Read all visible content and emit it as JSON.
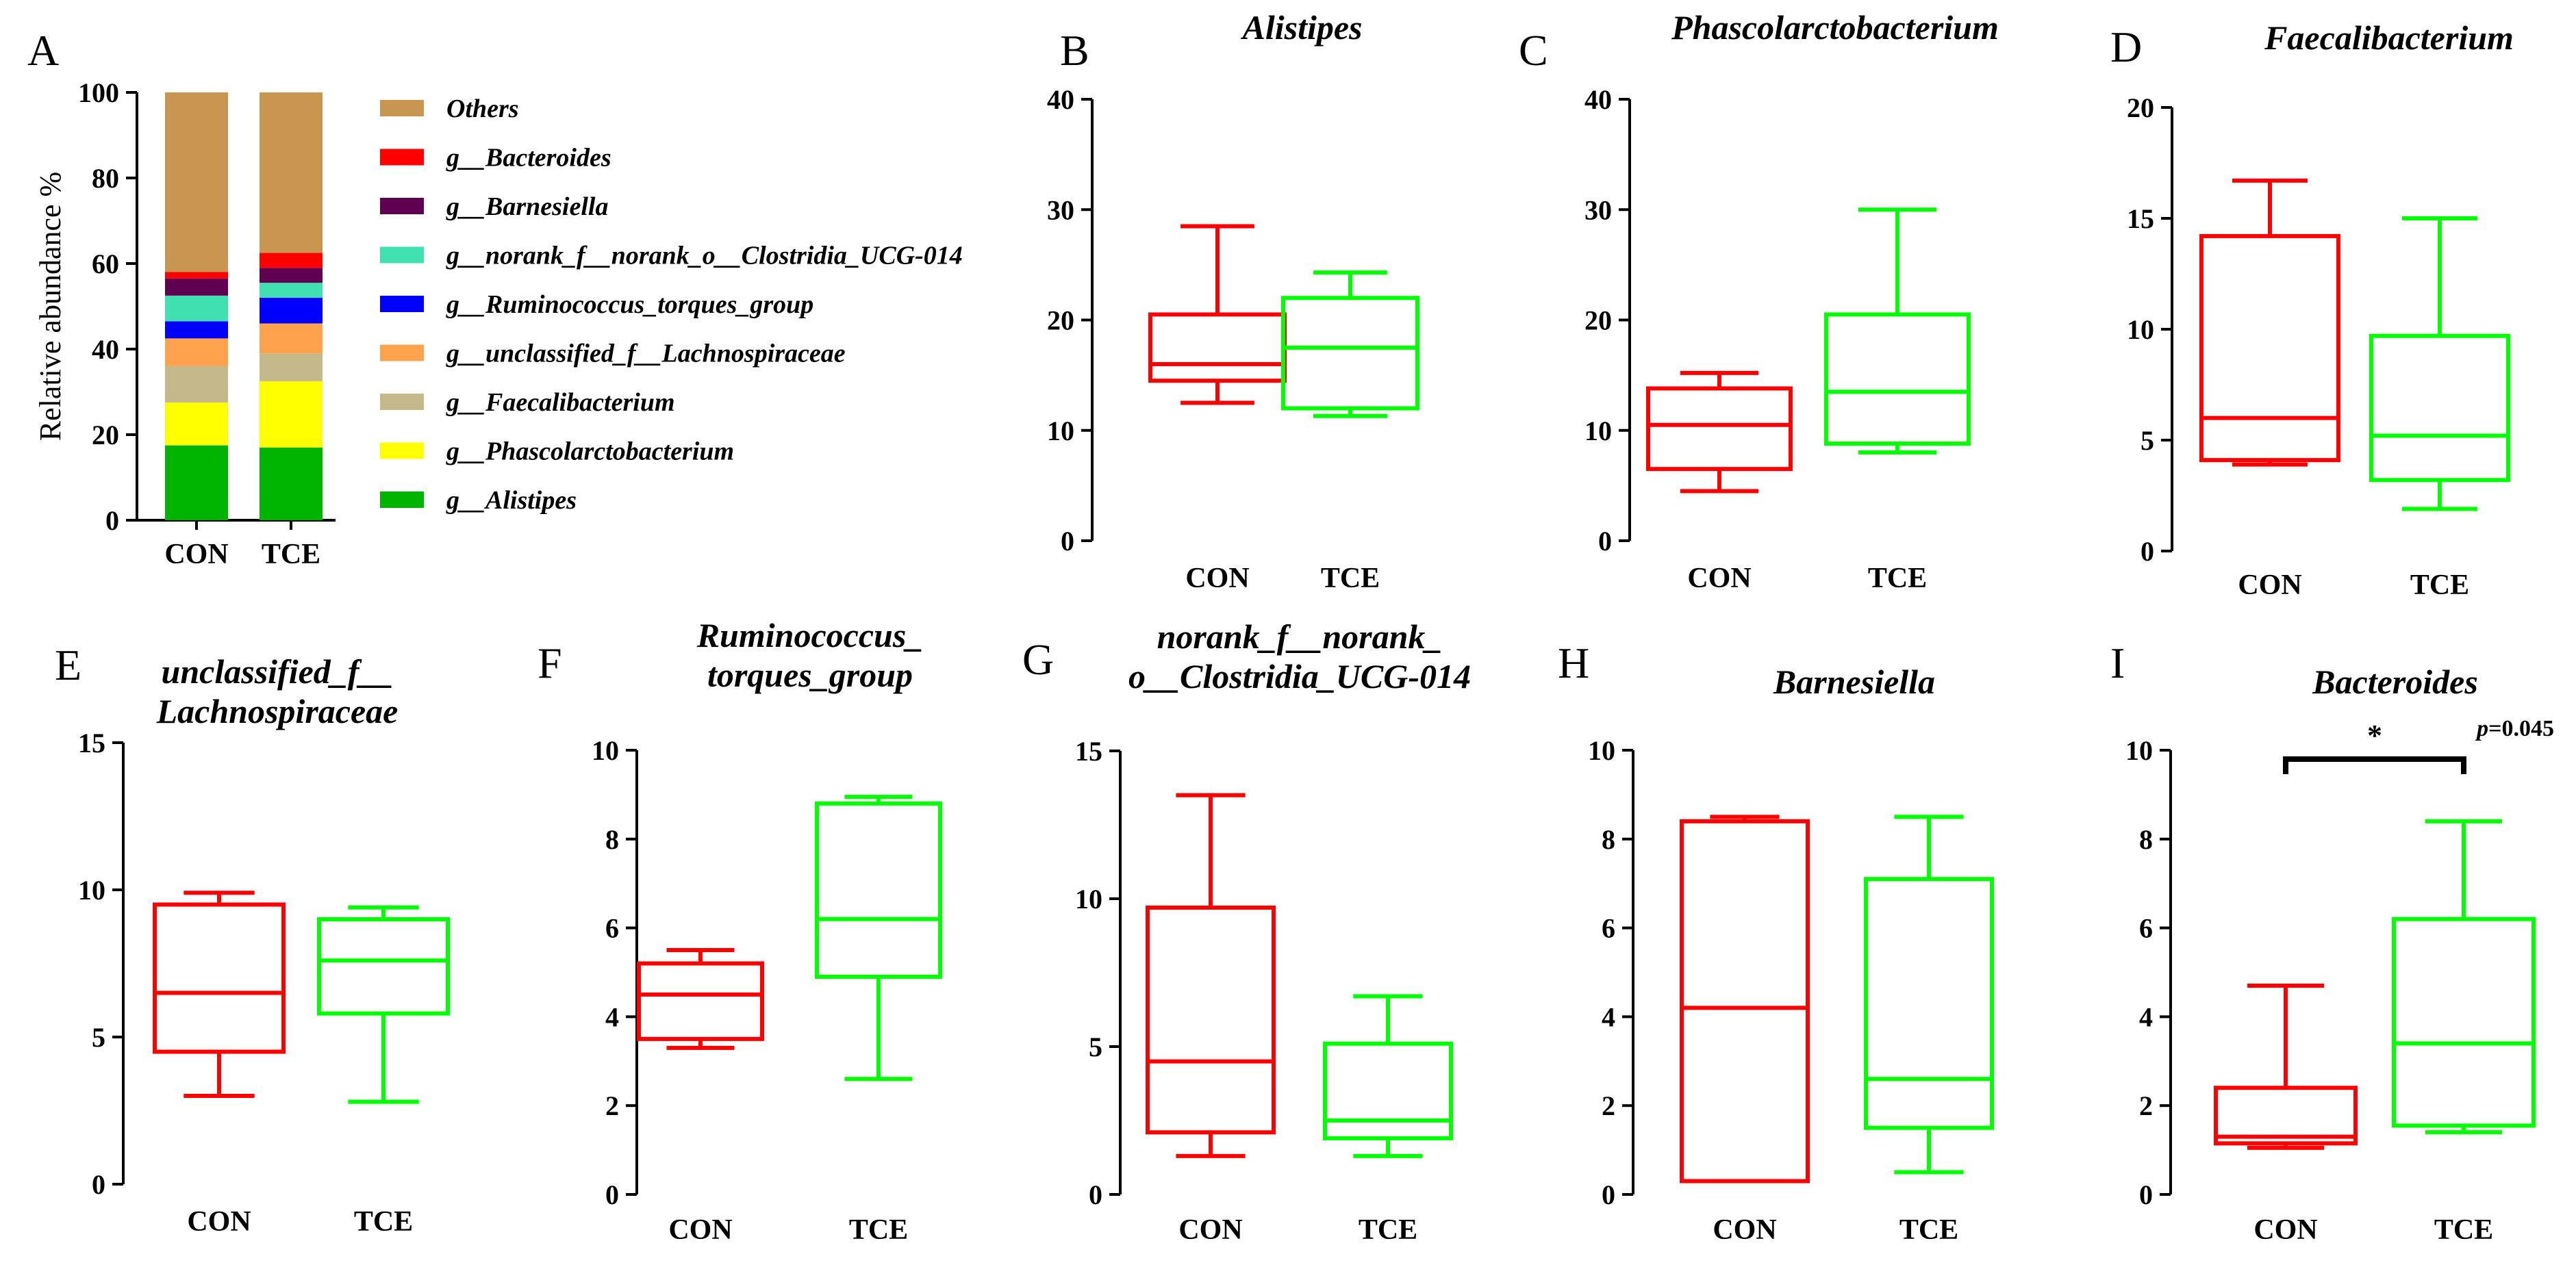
{
  "figure_colors": {
    "con": "#ff0000",
    "tce": "#00ff00",
    "axis": "#000000"
  },
  "chart_data": [
    {
      "id": "A",
      "type": "bar",
      "stacked": true,
      "panel_label": "A",
      "ylabel": "Relative abundance %",
      "ylim": [
        0,
        100
      ],
      "yticks": [
        0,
        20,
        40,
        60,
        80,
        100
      ],
      "categories": [
        "CON",
        "TCE"
      ],
      "legend_position": "right",
      "series": [
        {
          "name": "g__Alistipes",
          "color": "#00b300",
          "values": [
            17.5,
            17.0
          ]
        },
        {
          "name": "g__Phascolarctobacterium",
          "color": "#ffff00",
          "values": [
            10.0,
            15.5
          ]
        },
        {
          "name": "g__Faecalibacterium",
          "color": "#c3b98a",
          "values": [
            8.5,
            6.5
          ]
        },
        {
          "name": "g__unclassified_f__Lachnospiraceae",
          "color": "#ffa24d",
          "values": [
            6.5,
            7.0
          ]
        },
        {
          "name": "g__Ruminococcus_torques_group",
          "color": "#0000ff",
          "values": [
            4.0,
            6.0
          ]
        },
        {
          "name": "g__norank_f__norank_o__Clostridia_UCG-014",
          "color": "#40e0b0",
          "values": [
            6.0,
            3.5
          ]
        },
        {
          "name": "g__Barnesiella",
          "color": "#600050",
          "values": [
            4.0,
            3.5
          ]
        },
        {
          "name": "g__Bacteroides",
          "color": "#ff0000",
          "values": [
            1.5,
            3.5
          ]
        },
        {
          "name": "Others",
          "color": "#c89650",
          "values": [
            42.0,
            37.5
          ]
        }
      ]
    },
    {
      "id": "B",
      "type": "box",
      "panel_label": "B",
      "title": [
        "Alistipes"
      ],
      "ylim": [
        0,
        40
      ],
      "yticks": [
        0,
        10,
        20,
        30,
        40
      ],
      "categories": [
        "CON",
        "TCE"
      ],
      "boxes": [
        {
          "group": "CON",
          "min": 12.5,
          "q1": 14.5,
          "median": 16.0,
          "q3": 20.5,
          "max": 28.5
        },
        {
          "group": "TCE",
          "min": 11.3,
          "q1": 12.0,
          "median": 17.5,
          "q3": 22.0,
          "max": 24.3
        }
      ]
    },
    {
      "id": "C",
      "type": "box",
      "panel_label": "C",
      "title": [
        "Phascolarctobacterium"
      ],
      "ylim": [
        0,
        40
      ],
      "yticks": [
        0,
        10,
        20,
        30,
        40
      ],
      "categories": [
        "CON",
        "TCE"
      ],
      "boxes": [
        {
          "group": "CON",
          "min": 4.5,
          "q1": 6.5,
          "median": 10.5,
          "q3": 13.8,
          "max": 15.2
        },
        {
          "group": "TCE",
          "min": 8.0,
          "q1": 8.8,
          "median": 13.5,
          "q3": 20.5,
          "max": 30.0
        }
      ]
    },
    {
      "id": "D",
      "type": "box",
      "panel_label": "D",
      "title": [
        "Faecalibacterium"
      ],
      "ylim": [
        0,
        20
      ],
      "yticks": [
        0,
        5,
        10,
        15,
        20
      ],
      "categories": [
        "CON",
        "TCE"
      ],
      "boxes": [
        {
          "group": "CON",
          "min": 3.9,
          "q1": 4.1,
          "median": 6.0,
          "q3": 14.2,
          "max": 16.7
        },
        {
          "group": "TCE",
          "min": 1.9,
          "q1": 3.2,
          "median": 5.2,
          "q3": 9.7,
          "max": 15.0
        }
      ]
    },
    {
      "id": "E",
      "type": "box",
      "panel_label": "E",
      "title": [
        "unclassified_f__",
        "Lachnospiraceae"
      ],
      "ylim": [
        0,
        15
      ],
      "yticks": [
        0,
        5,
        10,
        15
      ],
      "categories": [
        "CON",
        "TCE"
      ],
      "boxes": [
        {
          "group": "CON",
          "min": 3.0,
          "q1": 4.5,
          "median": 6.5,
          "q3": 9.5,
          "max": 9.9
        },
        {
          "group": "TCE",
          "min": 2.8,
          "q1": 5.8,
          "median": 7.6,
          "q3": 9.0,
          "max": 9.4
        }
      ]
    },
    {
      "id": "F",
      "type": "box",
      "panel_label": "F",
      "title": [
        "Ruminococcus_",
        "torques_group"
      ],
      "ylim": [
        0,
        10
      ],
      "yticks": [
        0,
        2,
        4,
        6,
        8,
        10
      ],
      "categories": [
        "CON",
        "TCE"
      ],
      "boxes": [
        {
          "group": "CON",
          "min": 3.3,
          "q1": 3.5,
          "median": 4.5,
          "q3": 5.2,
          "max": 5.5
        },
        {
          "group": "TCE",
          "min": 2.6,
          "q1": 4.9,
          "median": 6.2,
          "q3": 8.8,
          "max": 8.95
        }
      ]
    },
    {
      "id": "G",
      "type": "box",
      "panel_label": "G",
      "title": [
        "norank_f__norank_",
        "o__Clostridia_UCG-014"
      ],
      "ylim": [
        0,
        15
      ],
      "yticks": [
        0,
        5,
        10,
        15
      ],
      "categories": [
        "CON",
        "TCE"
      ],
      "boxes": [
        {
          "group": "CON",
          "min": 1.3,
          "q1": 2.1,
          "median": 4.5,
          "q3": 9.7,
          "max": 13.5
        },
        {
          "group": "TCE",
          "min": 1.3,
          "q1": 1.9,
          "median": 2.5,
          "q3": 5.1,
          "max": 6.7
        }
      ]
    },
    {
      "id": "H",
      "type": "box",
      "panel_label": "H",
      "title": [
        "Barnesiella"
      ],
      "ylim": [
        0,
        10
      ],
      "yticks": [
        0,
        2,
        4,
        6,
        8,
        10
      ],
      "categories": [
        "CON",
        "TCE"
      ],
      "boxes": [
        {
          "group": "CON",
          "min": 0.3,
          "q1": 0.3,
          "median": 4.2,
          "q3": 8.4,
          "max": 8.5
        },
        {
          "group": "TCE",
          "min": 0.5,
          "q1": 1.5,
          "median": 2.6,
          "q3": 7.1,
          "max": 8.5
        }
      ]
    },
    {
      "id": "I",
      "type": "box",
      "panel_label": "I",
      "title": [
        "Bacteroides"
      ],
      "ylim": [
        0,
        10
      ],
      "yticks": [
        0,
        2,
        4,
        6,
        8,
        10
      ],
      "categories": [
        "CON",
        "TCE"
      ],
      "boxes": [
        {
          "group": "CON",
          "min": 1.05,
          "q1": 1.15,
          "median": 1.3,
          "q3": 2.4,
          "max": 4.7
        },
        {
          "group": "TCE",
          "min": 1.4,
          "q1": 1.55,
          "median": 3.4,
          "q3": 6.2,
          "max": 8.4
        }
      ],
      "annotation": {
        "significance": "*",
        "p_label": "p",
        "p_value": "=0.045",
        "bracket_y": 9.8
      }
    }
  ]
}
